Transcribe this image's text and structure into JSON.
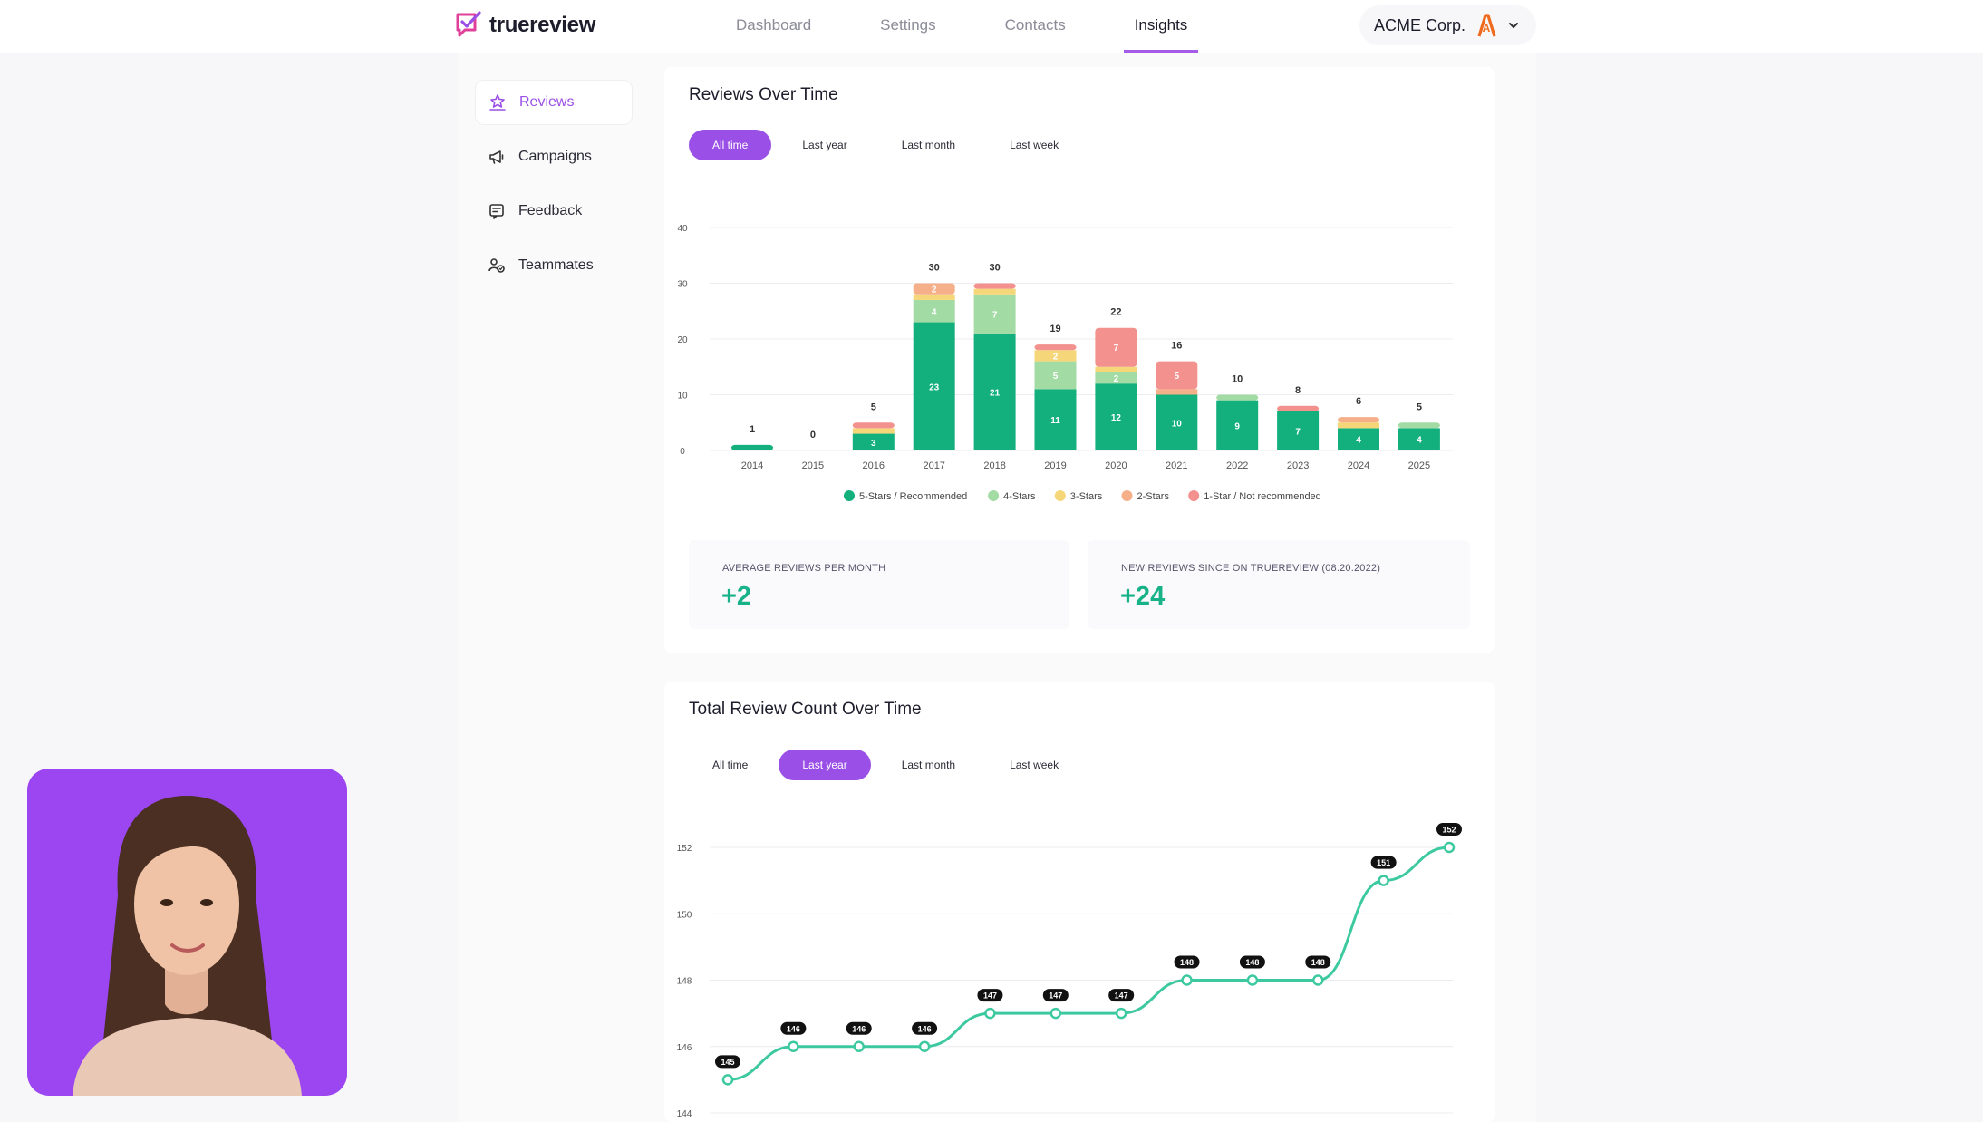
{
  "app": {
    "name": "truereview",
    "nav": [
      "Dashboard",
      "Settings",
      "Contacts",
      "Insights"
    ],
    "active_nav": "Insights",
    "org_name": "ACME Corp.",
    "org_initial": "A"
  },
  "sidebar": {
    "items": [
      {
        "label": "Reviews",
        "icon": "reviews-icon",
        "active": true
      },
      {
        "label": "Campaigns",
        "icon": "megaphone-icon",
        "active": false
      },
      {
        "label": "Feedback",
        "icon": "feedback-icon",
        "active": false
      },
      {
        "label": "Teammates",
        "icon": "teammates-icon",
        "active": false
      }
    ]
  },
  "reviews_over_time": {
    "title": "Reviews Over Time",
    "filters": [
      "All time",
      "Last year",
      "Last month",
      "Last week"
    ],
    "active_filter": "All time",
    "stats": [
      {
        "label": "AVERAGE REVIEWS PER MONTH",
        "value": "+2"
      },
      {
        "label": "NEW REVIEWS SINCE ON TRUEREVIEW (08.20.2022)",
        "value": "+24"
      }
    ]
  },
  "total_review_count": {
    "title": "Total Review Count Over Time",
    "filters": [
      "All time",
      "Last year",
      "Last month",
      "Last week"
    ],
    "active_filter": "Last year"
  },
  "colors": {
    "accent": "#9a4fe6",
    "five_star": "#13b07e",
    "four_star": "#a3dba4",
    "three_star": "#f5d77a",
    "two_star": "#f5b08a",
    "one_star": "#f2918d",
    "line": "#3dc9a0"
  },
  "chart_data": [
    {
      "type": "bar",
      "stacked": true,
      "title": "Reviews Over Time",
      "categories": [
        "2014",
        "2015",
        "2016",
        "2017",
        "2018",
        "2019",
        "2020",
        "2021",
        "2022",
        "2023",
        "2024",
        "2025"
      ],
      "totals": [
        1,
        0,
        5,
        30,
        30,
        19,
        22,
        16,
        10,
        8,
        6,
        5
      ],
      "series": [
        {
          "name": "5-Stars / Recommended",
          "values": [
            1,
            0,
            3,
            23,
            21,
            11,
            12,
            10,
            9,
            7,
            4,
            4
          ]
        },
        {
          "name": "4-Stars",
          "values": [
            0,
            0,
            0,
            4,
            7,
            5,
            2,
            0,
            1,
            0,
            0,
            1
          ]
        },
        {
          "name": "3-Stars",
          "values": [
            0,
            0,
            1,
            1,
            1,
            2,
            1,
            0,
            0,
            0,
            1,
            0
          ]
        },
        {
          "name": "2-Stars",
          "values": [
            0,
            0,
            0,
            2,
            0,
            0,
            0,
            1,
            0,
            0,
            1,
            0
          ]
        },
        {
          "name": "1-Star / Not recommended",
          "values": [
            0,
            0,
            1,
            0,
            1,
            1,
            7,
            5,
            0,
            1,
            0,
            0
          ]
        }
      ],
      "segment_labels": [
        {
          "category": "2016",
          "series": "5-Stars / Recommended",
          "text": "3"
        },
        {
          "category": "2017",
          "series": "5-Stars / Recommended",
          "text": "23"
        },
        {
          "category": "2017",
          "series": "4-Stars",
          "text": "4"
        },
        {
          "category": "2017",
          "series": "2-Stars",
          "text": "2"
        },
        {
          "category": "2018",
          "series": "5-Stars / Recommended",
          "text": "21"
        },
        {
          "category": "2018",
          "series": "4-Stars",
          "text": "7"
        },
        {
          "category": "2019",
          "series": "5-Stars / Recommended",
          "text": "11"
        },
        {
          "category": "2019",
          "series": "4-Stars",
          "text": "5"
        },
        {
          "category": "2019",
          "series": "3-Stars",
          "text": "2"
        },
        {
          "category": "2020",
          "series": "5-Stars / Recommended",
          "text": "12"
        },
        {
          "category": "2020",
          "series": "4-Stars",
          "text": "2"
        },
        {
          "category": "2020",
          "series": "1-Star / Not recommended",
          "text": "7"
        },
        {
          "category": "2021",
          "series": "5-Stars / Recommended",
          "text": "10"
        },
        {
          "category": "2021",
          "series": "1-Star / Not recommended",
          "text": "5"
        },
        {
          "category": "2022",
          "series": "5-Stars / Recommended",
          "text": "9"
        },
        {
          "category": "2023",
          "series": "5-Stars / Recommended",
          "text": "7"
        },
        {
          "category": "2024",
          "series": "5-Stars / Recommended",
          "text": "4"
        },
        {
          "category": "2025",
          "series": "5-Stars / Recommended",
          "text": "4"
        }
      ],
      "yticks": [
        0,
        10,
        20,
        30,
        40
      ],
      "ylim": [
        0,
        40
      ],
      "legend_position": "bottom"
    },
    {
      "type": "line",
      "title": "Total Review Count Over Time",
      "values": [
        145,
        146,
        146,
        146,
        147,
        147,
        147,
        148,
        148,
        148,
        151,
        152
      ],
      "yticks": [
        144,
        146,
        148,
        150,
        152
      ],
      "ylim": [
        144,
        152
      ]
    }
  ]
}
